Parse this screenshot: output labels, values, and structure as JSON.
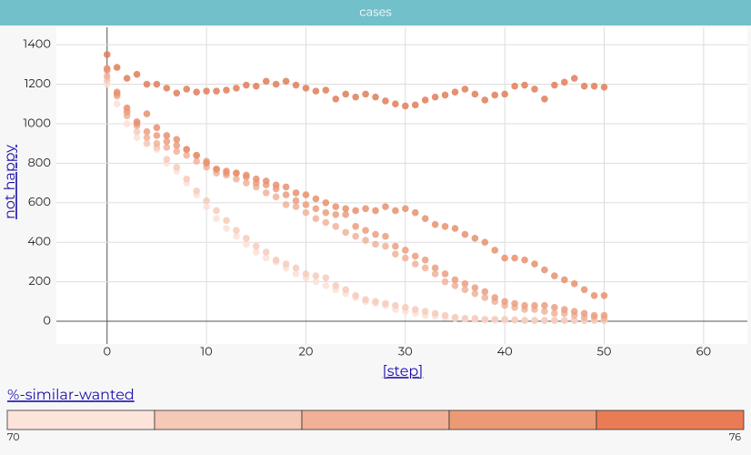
{
  "header": {
    "title": "cases"
  },
  "chart_data": {
    "type": "scatter",
    "x_label": "[step]",
    "y_label": "not happy",
    "xlim": [
      -5.1,
      64.4
    ],
    "ylim": [
      -115,
      1488
    ],
    "xticks": [
      0,
      10,
      20,
      30,
      40,
      50,
      60
    ],
    "yticks": [
      0,
      200,
      400,
      600,
      800,
      1000,
      1200,
      1400
    ],
    "grid": true,
    "x": [
      0,
      1,
      2,
      3,
      4,
      5,
      6,
      7,
      8,
      9,
      10,
      11,
      12,
      13,
      14,
      15,
      16,
      17,
      18,
      19,
      20,
      21,
      22,
      23,
      24,
      25,
      26,
      27,
      28,
      29,
      30,
      31,
      32,
      33,
      34,
      35,
      36,
      37,
      38,
      39,
      40,
      41,
      42,
      43,
      44,
      45,
      46,
      47,
      48,
      49,
      50
    ],
    "series": [
      {
        "color": "#fbe0d6",
        "values": [
          1200,
          1100,
          1000,
          930,
          900,
          870,
          800,
          760,
          700,
          640,
          580,
          520,
          470,
          430,
          390,
          350,
          320,
          300,
          270,
          240,
          220,
          200,
          180,
          160,
          140,
          120,
          100,
          90,
          80,
          60,
          50,
          40,
          30,
          25,
          20,
          15,
          10,
          8,
          6,
          5,
          4,
          4,
          3,
          3,
          3,
          3,
          3,
          3,
          3,
          3,
          3
        ]
      },
      {
        "color": "#f6cbbb",
        "values": [
          1220,
          1150,
          1060,
          960,
          900,
          880,
          820,
          780,
          720,
          660,
          610,
          560,
          510,
          460,
          420,
          380,
          350,
          310,
          290,
          270,
          240,
          230,
          220,
          180,
          160,
          130,
          110,
          100,
          90,
          80,
          70,
          60,
          50,
          40,
          30,
          20,
          15,
          15,
          10,
          10,
          10,
          8,
          5,
          5,
          5,
          5,
          5,
          5,
          5,
          5,
          5
        ]
      },
      {
        "color": "#f0b39b",
        "values": [
          1240,
          1140,
          1040,
          990,
          930,
          900,
          880,
          860,
          840,
          810,
          780,
          750,
          740,
          720,
          700,
          680,
          650,
          630,
          590,
          580,
          550,
          520,
          500,
          480,
          450,
          430,
          410,
          390,
          380,
          340,
          320,
          290,
          270,
          240,
          200,
          180,
          160,
          140,
          120,
          100,
          80,
          70,
          60,
          60,
          50,
          40,
          40,
          30,
          20,
          20,
          15
        ]
      },
      {
        "color": "#eb9f80",
        "values": [
          1270,
          1150,
          1060,
          1000,
          960,
          940,
          910,
          890,
          870,
          840,
          810,
          770,
          750,
          750,
          730,
          700,
          690,
          670,
          640,
          610,
          590,
          570,
          550,
          540,
          540,
          480,
          460,
          440,
          430,
          380,
          360,
          330,
          310,
          270,
          240,
          210,
          190,
          170,
          150,
          120,
          100,
          90,
          80,
          80,
          80,
          70,
          60,
          50,
          40,
          30,
          30
        ]
      },
      {
        "color": "#e8906d",
        "values": [
          1280,
          1160,
          1080,
          1010,
          1050,
          980,
          940,
          920,
          870,
          840,
          800,
          770,
          760,
          750,
          740,
          720,
          710,
          690,
          680,
          650,
          640,
          620,
          600,
          580,
          570,
          560,
          570,
          560,
          580,
          560,
          570,
          550,
          520,
          490,
          480,
          470,
          440,
          420,
          400,
          360,
          320,
          320,
          310,
          290,
          260,
          230,
          210,
          190,
          160,
          130,
          130
        ]
      },
      {
        "color": "#e07e58",
        "values": [
          1350,
          1285,
          1230,
          1250,
          1200,
          1200,
          1180,
          1155,
          1175,
          1160,
          1165,
          1165,
          1170,
          1180,
          1195,
          1190,
          1215,
          1200,
          1215,
          1195,
          1180,
          1165,
          1170,
          1125,
          1150,
          1135,
          1150,
          1135,
          1115,
          1100,
          1090,
          1095,
          1120,
          1135,
          1145,
          1160,
          1175,
          1150,
          1120,
          1145,
          1150,
          1190,
          1195,
          1175,
          1125,
          1195,
          1210,
          1230,
          1190,
          1190,
          1185
        ]
      }
    ],
    "legend": {
      "title": "%-similar-wanted",
      "min": 70,
      "max": 76,
      "colors": [
        "#fde4db",
        "#f6c8b6",
        "#f0b196",
        "#ec9a76",
        "#e97c55"
      ]
    }
  }
}
